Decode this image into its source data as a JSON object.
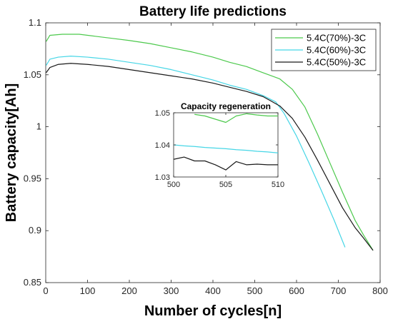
{
  "chart_data": [
    {
      "type": "line",
      "title": "Battery life predictions",
      "xlabel": "Number of cycles[n]",
      "ylabel": "Battery capacity[Ah]",
      "xlim": [
        0,
        800
      ],
      "ylim": [
        0.85,
        1.1
      ],
      "xticks": [
        "0",
        "100",
        "200",
        "300",
        "400",
        "500",
        "600",
        "700",
        "800"
      ],
      "yticks": [
        "0.85",
        "0.9",
        "0.95",
        "1",
        "1.05",
        "1.1"
      ],
      "legend_position": "top-right",
      "series": [
        {
          "name": "5.4C(70%)-3C",
          "color": "#4cc94c",
          "x": [
            1,
            10,
            40,
            80,
            120,
            160,
            200,
            250,
            300,
            350,
            400,
            440,
            480,
            520,
            560,
            590,
            620,
            650,
            680,
            710,
            740,
            760,
            783
          ],
          "y": [
            1.082,
            1.088,
            1.089,
            1.089,
            1.087,
            1.085,
            1.083,
            1.08,
            1.076,
            1.072,
            1.067,
            1.062,
            1.058,
            1.052,
            1.046,
            1.036,
            1.019,
            0.993,
            0.965,
            0.937,
            0.91,
            0.896,
            0.881
          ]
        },
        {
          "name": "5.4C(60%)-3C",
          "color": "#46d6e6",
          "x": [
            1,
            10,
            30,
            60,
            100,
            150,
            200,
            250,
            300,
            350,
            400,
            440,
            480,
            520,
            550,
            570,
            600,
            630,
            660,
            690,
            716
          ],
          "y": [
            1.059,
            1.065,
            1.067,
            1.068,
            1.067,
            1.065,
            1.062,
            1.059,
            1.055,
            1.05,
            1.045,
            1.04,
            1.036,
            1.03,
            1.024,
            1.013,
            0.991,
            0.965,
            0.938,
            0.91,
            0.884
          ]
        },
        {
          "name": "5.4C(50%)-3C",
          "color": "#1a1a1a",
          "x": [
            1,
            10,
            30,
            60,
            100,
            150,
            200,
            250,
            300,
            350,
            400,
            440,
            480,
            520,
            560,
            590,
            620,
            650,
            680,
            710,
            740,
            760,
            783
          ],
          "y": [
            1.052,
            1.057,
            1.06,
            1.061,
            1.06,
            1.058,
            1.055,
            1.052,
            1.049,
            1.046,
            1.042,
            1.038,
            1.034,
            1.029,
            1.02,
            1.008,
            0.99,
            0.968,
            0.945,
            0.922,
            0.903,
            0.893,
            0.881
          ]
        }
      ]
    },
    {
      "type": "line",
      "title": "Capacity regeneration",
      "xlim": [
        500,
        510
      ],
      "ylim": [
        1.03,
        1.05
      ],
      "xticks": [
        "500",
        "505",
        "510"
      ],
      "yticks": [
        "1.03",
        "1.04",
        "1.05"
      ],
      "series": [
        {
          "color": "#4cc94c",
          "x": [
            502,
            503,
            504,
            505,
            506,
            507,
            508,
            509,
            510
          ],
          "y": [
            1.0495,
            1.049,
            1.048,
            1.047,
            1.049,
            1.0497,
            1.0493,
            1.049,
            1.049
          ]
        },
        {
          "color": "#46d6e6",
          "x": [
            500,
            501,
            502,
            503,
            504,
            505,
            506,
            507,
            508,
            509,
            510
          ],
          "y": [
            1.04,
            1.0397,
            1.0395,
            1.0392,
            1.039,
            1.0388,
            1.0385,
            1.0383,
            1.038,
            1.0378,
            1.0375
          ]
        },
        {
          "color": "#1a1a1a",
          "x": [
            500,
            501,
            502,
            503,
            504,
            505,
            506,
            507,
            508,
            509,
            510
          ],
          "y": [
            1.0355,
            1.0362,
            1.035,
            1.035,
            1.0338,
            1.0322,
            1.0348,
            1.0338,
            1.034,
            1.0338,
            1.0338
          ]
        }
      ]
    }
  ]
}
